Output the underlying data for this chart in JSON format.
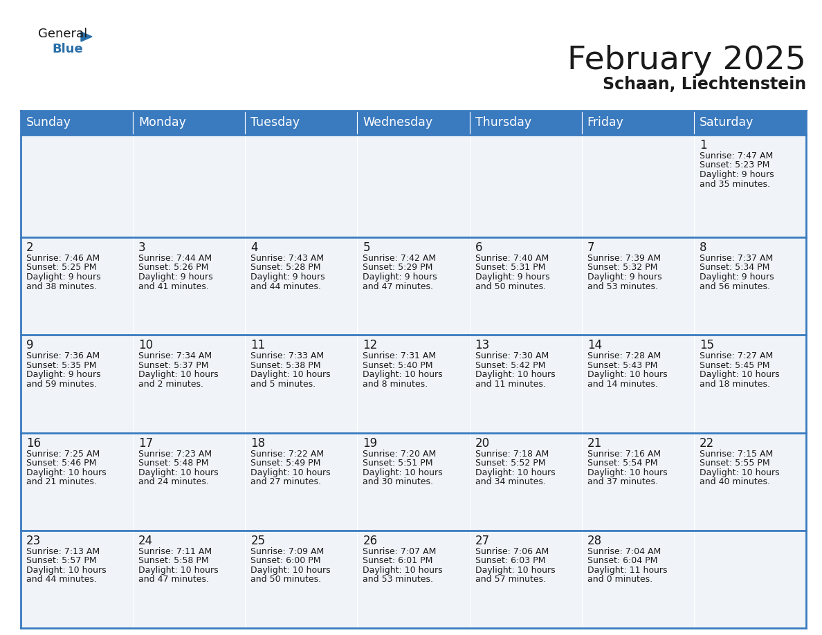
{
  "title": "February 2025",
  "subtitle": "Schaan, Liechtenstein",
  "header_color": "#3a7abf",
  "header_text_color": "#ffffff",
  "cell_bg": "#f0f4f8",
  "border_color": "#3a7abf",
  "text_color": "#1a1a1a",
  "day_headers": [
    "Sunday",
    "Monday",
    "Tuesday",
    "Wednesday",
    "Thursday",
    "Friday",
    "Saturday"
  ],
  "title_fontsize": 34,
  "subtitle_fontsize": 17,
  "header_fontsize": 12.5,
  "day_num_fontsize": 12,
  "cell_fontsize": 9.0,
  "days": [
    {
      "day": 1,
      "col": 6,
      "row": 0,
      "sunrise": "7:47 AM",
      "sunset": "5:23 PM",
      "daylight_hours": 9,
      "daylight_minutes": 35
    },
    {
      "day": 2,
      "col": 0,
      "row": 1,
      "sunrise": "7:46 AM",
      "sunset": "5:25 PM",
      "daylight_hours": 9,
      "daylight_minutes": 38
    },
    {
      "day": 3,
      "col": 1,
      "row": 1,
      "sunrise": "7:44 AM",
      "sunset": "5:26 PM",
      "daylight_hours": 9,
      "daylight_minutes": 41
    },
    {
      "day": 4,
      "col": 2,
      "row": 1,
      "sunrise": "7:43 AM",
      "sunset": "5:28 PM",
      "daylight_hours": 9,
      "daylight_minutes": 44
    },
    {
      "day": 5,
      "col": 3,
      "row": 1,
      "sunrise": "7:42 AM",
      "sunset": "5:29 PM",
      "daylight_hours": 9,
      "daylight_minutes": 47
    },
    {
      "day": 6,
      "col": 4,
      "row": 1,
      "sunrise": "7:40 AM",
      "sunset": "5:31 PM",
      "daylight_hours": 9,
      "daylight_minutes": 50
    },
    {
      "day": 7,
      "col": 5,
      "row": 1,
      "sunrise": "7:39 AM",
      "sunset": "5:32 PM",
      "daylight_hours": 9,
      "daylight_minutes": 53
    },
    {
      "day": 8,
      "col": 6,
      "row": 1,
      "sunrise": "7:37 AM",
      "sunset": "5:34 PM",
      "daylight_hours": 9,
      "daylight_minutes": 56
    },
    {
      "day": 9,
      "col": 0,
      "row": 2,
      "sunrise": "7:36 AM",
      "sunset": "5:35 PM",
      "daylight_hours": 9,
      "daylight_minutes": 59
    },
    {
      "day": 10,
      "col": 1,
      "row": 2,
      "sunrise": "7:34 AM",
      "sunset": "5:37 PM",
      "daylight_hours": 10,
      "daylight_minutes": 2
    },
    {
      "day": 11,
      "col": 2,
      "row": 2,
      "sunrise": "7:33 AM",
      "sunset": "5:38 PM",
      "daylight_hours": 10,
      "daylight_minutes": 5
    },
    {
      "day": 12,
      "col": 3,
      "row": 2,
      "sunrise": "7:31 AM",
      "sunset": "5:40 PM",
      "daylight_hours": 10,
      "daylight_minutes": 8
    },
    {
      "day": 13,
      "col": 4,
      "row": 2,
      "sunrise": "7:30 AM",
      "sunset": "5:42 PM",
      "daylight_hours": 10,
      "daylight_minutes": 11
    },
    {
      "day": 14,
      "col": 5,
      "row": 2,
      "sunrise": "7:28 AM",
      "sunset": "5:43 PM",
      "daylight_hours": 10,
      "daylight_minutes": 14
    },
    {
      "day": 15,
      "col": 6,
      "row": 2,
      "sunrise": "7:27 AM",
      "sunset": "5:45 PM",
      "daylight_hours": 10,
      "daylight_minutes": 18
    },
    {
      "day": 16,
      "col": 0,
      "row": 3,
      "sunrise": "7:25 AM",
      "sunset": "5:46 PM",
      "daylight_hours": 10,
      "daylight_minutes": 21
    },
    {
      "day": 17,
      "col": 1,
      "row": 3,
      "sunrise": "7:23 AM",
      "sunset": "5:48 PM",
      "daylight_hours": 10,
      "daylight_minutes": 24
    },
    {
      "day": 18,
      "col": 2,
      "row": 3,
      "sunrise": "7:22 AM",
      "sunset": "5:49 PM",
      "daylight_hours": 10,
      "daylight_minutes": 27
    },
    {
      "day": 19,
      "col": 3,
      "row": 3,
      "sunrise": "7:20 AM",
      "sunset": "5:51 PM",
      "daylight_hours": 10,
      "daylight_minutes": 30
    },
    {
      "day": 20,
      "col": 4,
      "row": 3,
      "sunrise": "7:18 AM",
      "sunset": "5:52 PM",
      "daylight_hours": 10,
      "daylight_minutes": 34
    },
    {
      "day": 21,
      "col": 5,
      "row": 3,
      "sunrise": "7:16 AM",
      "sunset": "5:54 PM",
      "daylight_hours": 10,
      "daylight_minutes": 37
    },
    {
      "day": 22,
      "col": 6,
      "row": 3,
      "sunrise": "7:15 AM",
      "sunset": "5:55 PM",
      "daylight_hours": 10,
      "daylight_minutes": 40
    },
    {
      "day": 23,
      "col": 0,
      "row": 4,
      "sunrise": "7:13 AM",
      "sunset": "5:57 PM",
      "daylight_hours": 10,
      "daylight_minutes": 44
    },
    {
      "day": 24,
      "col": 1,
      "row": 4,
      "sunrise": "7:11 AM",
      "sunset": "5:58 PM",
      "daylight_hours": 10,
      "daylight_minutes": 47
    },
    {
      "day": 25,
      "col": 2,
      "row": 4,
      "sunrise": "7:09 AM",
      "sunset": "6:00 PM",
      "daylight_hours": 10,
      "daylight_minutes": 50
    },
    {
      "day": 26,
      "col": 3,
      "row": 4,
      "sunrise": "7:07 AM",
      "sunset": "6:01 PM",
      "daylight_hours": 10,
      "daylight_minutes": 53
    },
    {
      "day": 27,
      "col": 4,
      "row": 4,
      "sunrise": "7:06 AM",
      "sunset": "6:03 PM",
      "daylight_hours": 10,
      "daylight_minutes": 57
    },
    {
      "day": 28,
      "col": 5,
      "row": 4,
      "sunrise": "7:04 AM",
      "sunset": "6:04 PM",
      "daylight_hours": 11,
      "daylight_minutes": 0
    }
  ]
}
